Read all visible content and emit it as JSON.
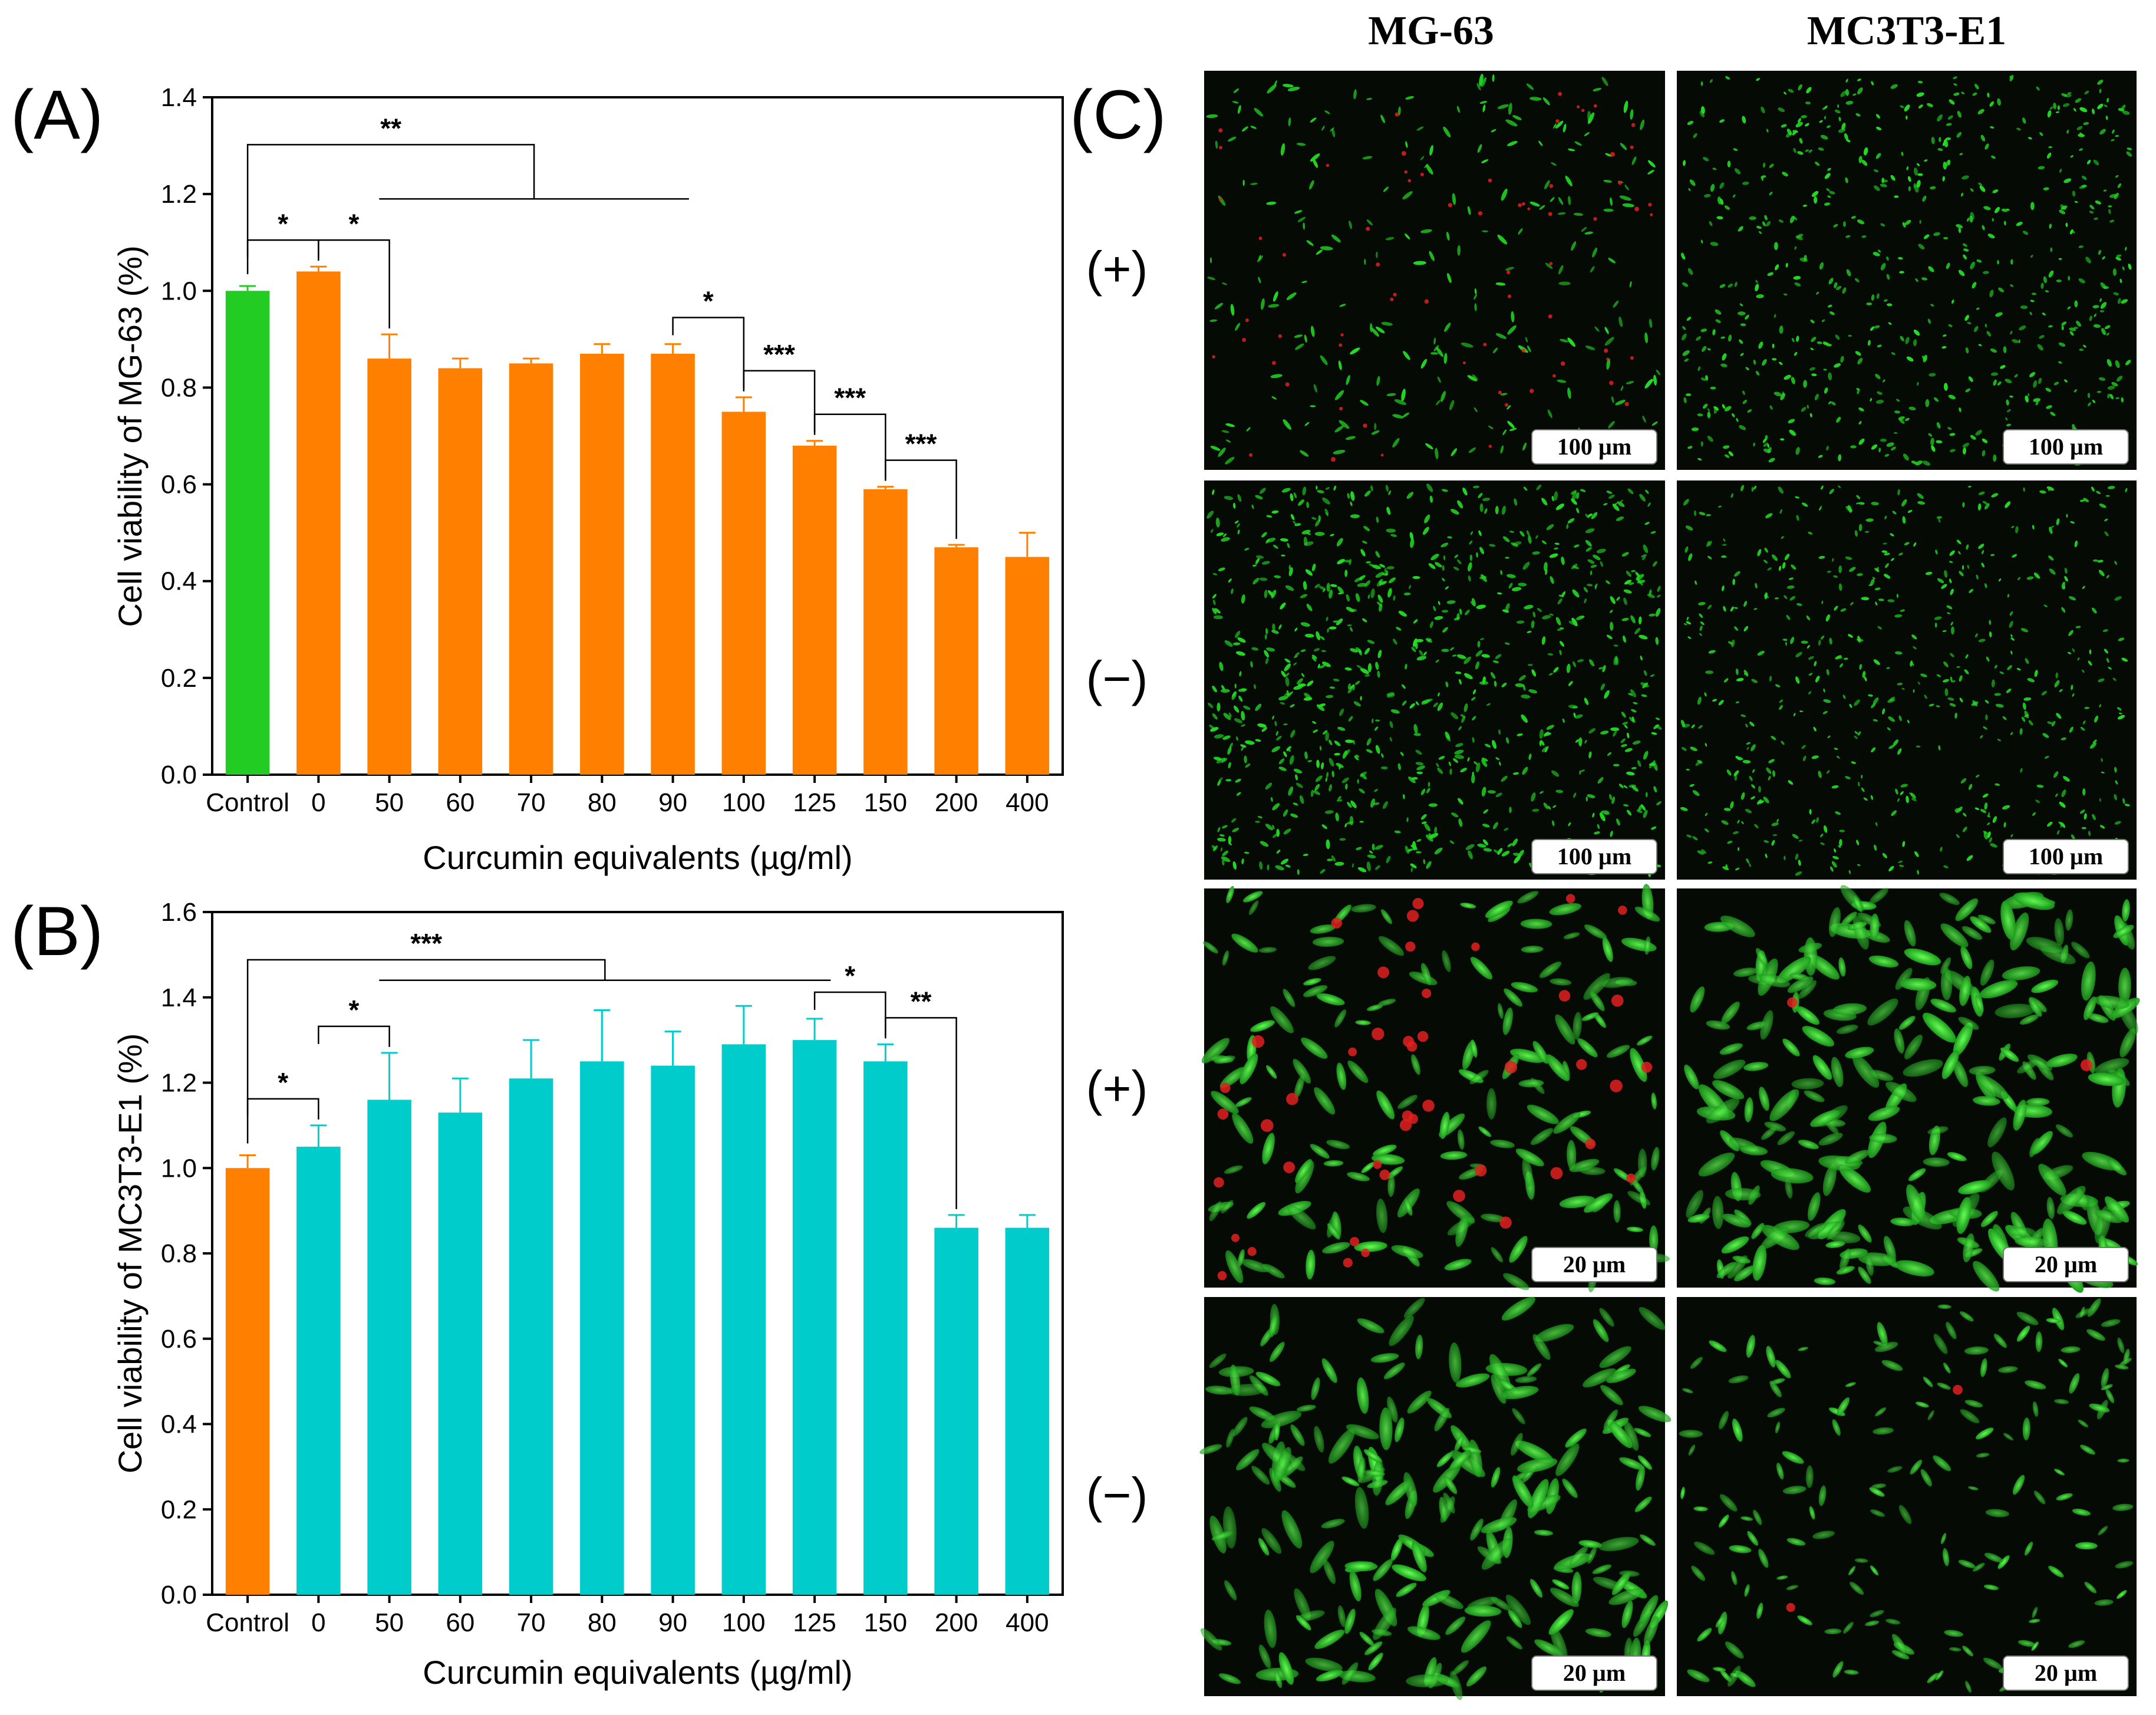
{
  "panels": {
    "a": "(A)",
    "b": "(B)",
    "c": "(C)"
  },
  "colors": {
    "control_a": "#22cc22",
    "bar_a": "#ff8000",
    "control_b": "#ff8000",
    "bar_b": "#00cccc",
    "live": "#22dd22",
    "dead": "#e02020"
  },
  "chart_data": [
    {
      "id": "A",
      "type": "bar",
      "categories": [
        "Control",
        "0",
        "50",
        "60",
        "70",
        "80",
        "90",
        "100",
        "125",
        "150",
        "200",
        "400"
      ],
      "values": [
        1.0,
        1.04,
        0.86,
        0.84,
        0.85,
        0.87,
        0.87,
        0.75,
        0.68,
        0.59,
        0.47,
        0.45
      ],
      "errors": [
        0.01,
        0.01,
        0.05,
        0.02,
        0.01,
        0.02,
        0.02,
        0.03,
        0.01,
        0.005,
        0.005,
        0.05
      ],
      "xlabel": "Curcumin equivalents (µg/ml)",
      "ylabel": "Cell viability of MG-63 (%)",
      "ylim": [
        0.0,
        1.4
      ],
      "yticks": [
        "0.0",
        "0.2",
        "0.4",
        "0.6",
        "0.8",
        "1.0",
        "1.2",
        "1.4"
      ],
      "significance": [
        {
          "label": "**",
          "from": "Control",
          "to": "90",
          "type": "group"
        },
        {
          "label": "*",
          "from": "Control",
          "to": "0"
        },
        {
          "label": "*",
          "from": "0",
          "to": "50"
        },
        {
          "label": "*",
          "from": "90",
          "to": "100"
        },
        {
          "label": "***",
          "from": "100",
          "to": "125"
        },
        {
          "label": "***",
          "from": "125",
          "to": "150"
        },
        {
          "label": "***",
          "from": "150",
          "to": "200"
        }
      ]
    },
    {
      "id": "B",
      "type": "bar",
      "categories": [
        "Control",
        "0",
        "50",
        "60",
        "70",
        "80",
        "90",
        "100",
        "125",
        "150",
        "200",
        "400"
      ],
      "values": [
        1.0,
        1.05,
        1.16,
        1.13,
        1.21,
        1.25,
        1.24,
        1.29,
        1.3,
        1.25,
        0.86,
        0.86
      ],
      "errors": [
        0.03,
        0.05,
        0.11,
        0.08,
        0.09,
        0.12,
        0.08,
        0.09,
        0.05,
        0.04,
        0.03,
        0.03
      ],
      "xlabel": "Curcumin equivalents (µg/ml)",
      "ylabel": "Cell viability of MC3T3-E1 (%)",
      "ylim": [
        0.0,
        1.6
      ],
      "yticks": [
        "0.0",
        "0.2",
        "0.4",
        "0.6",
        "0.8",
        "1.0",
        "1.2",
        "1.4",
        "1.6"
      ],
      "significance": [
        {
          "label": "***",
          "from": "Control",
          "to": "125",
          "type": "group"
        },
        {
          "label": "*",
          "from": "Control",
          "to": "0"
        },
        {
          "label": "*",
          "from": "0",
          "to": "50"
        },
        {
          "label": "*",
          "from": "125",
          "to": "150"
        },
        {
          "label": "**",
          "from": "150",
          "to": "200"
        }
      ]
    }
  ],
  "micrographs": {
    "columns": [
      "MG-63",
      "MC3T3-E1"
    ],
    "rows": [
      "(+)",
      "(−)",
      "(+)",
      "(−)"
    ],
    "scale_bars": [
      [
        "100 µm",
        "100 µm"
      ],
      [
        "100 µm",
        "100 µm"
      ],
      [
        "20 µm",
        "20 µm"
      ],
      [
        "20 µm",
        "20 µm"
      ]
    ]
  }
}
